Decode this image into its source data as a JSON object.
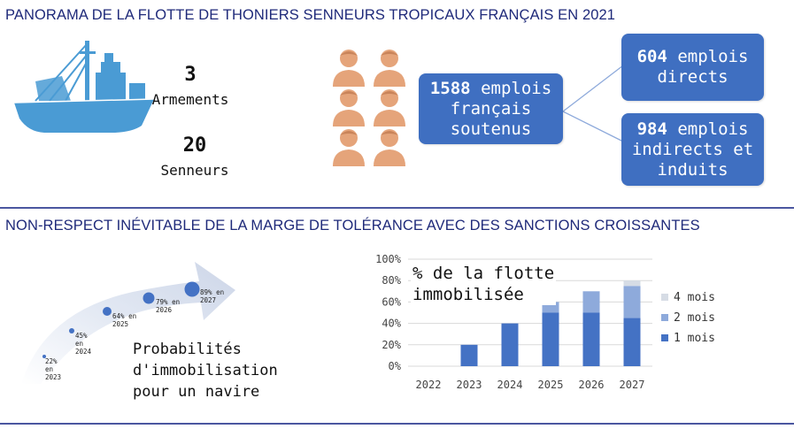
{
  "section1": {
    "title": "PANORAMA DE LA FLOTTE DE THONIERS SENNEURS TROPICAUX FRANÇAIS EN 2021",
    "armements": {
      "value": "3",
      "label": "Armements"
    },
    "senneurs": {
      "value": "20",
      "label": "Senneurs"
    },
    "jobs_total": {
      "number": "1588",
      "line1": "emplois",
      "line2": "français",
      "line3": "soutenus"
    },
    "jobs_direct": {
      "number": "604",
      "line1": "emplois",
      "line2": "directs"
    },
    "jobs_indirect": {
      "number": "984",
      "line1": "emplois",
      "line2": "indirects et",
      "line3": "induits"
    },
    "icons": {
      "ship": "tuna-seiner-ship-icon",
      "people": "people-group-icon"
    },
    "colors": {
      "ship": "#4a9bd4",
      "people": "#e5a47a",
      "box": "#3f6fc1"
    }
  },
  "section2": {
    "title": "NON-RESPECT INÉVITABLE DE LA MARGE DE TOLÉRANCE AVEC DES SANCTIONS CROISSANTES",
    "probabilities": {
      "points": [
        {
          "pct": "22%",
          "en": "en",
          "year": "2023"
        },
        {
          "pct": "45%",
          "en": "en",
          "year": "2024"
        },
        {
          "pct": "64%",
          "en": "en",
          "year": "2025"
        },
        {
          "pct": "79%",
          "en": "en",
          "year": "2026"
        },
        {
          "pct": "89%",
          "en": "en",
          "year": "2027"
        }
      ],
      "text_line1": "Probabilités",
      "text_line2": "d'immobilisation",
      "text_line3": "pour un navire"
    }
  },
  "chart_data": {
    "type": "bar",
    "stacked": true,
    "title_line1": "% de la flotte",
    "title_line2": "immobilisée",
    "categories": [
      "2022",
      "2023",
      "2024",
      "2025",
      "2026",
      "2027"
    ],
    "series": [
      {
        "name": "1 mois",
        "color": "#4472c4",
        "values": [
          0,
          20,
          40,
          50,
          50,
          45
        ]
      },
      {
        "name": "2 mois",
        "color": "#8eaadb",
        "values": [
          0,
          0,
          0,
          10,
          20,
          30
        ]
      },
      {
        "name": "4 mois",
        "color": "#d6dce5",
        "values": [
          0,
          0,
          0,
          0,
          0,
          5
        ]
      }
    ],
    "legend_order": [
      "4 mois",
      "2 mois",
      "1 mois"
    ],
    "y_ticks": [
      "0%",
      "20%",
      "40%",
      "60%",
      "80%",
      "100%"
    ],
    "ylim": [
      0,
      100
    ],
    "grid": true,
    "legend_position": "right"
  }
}
